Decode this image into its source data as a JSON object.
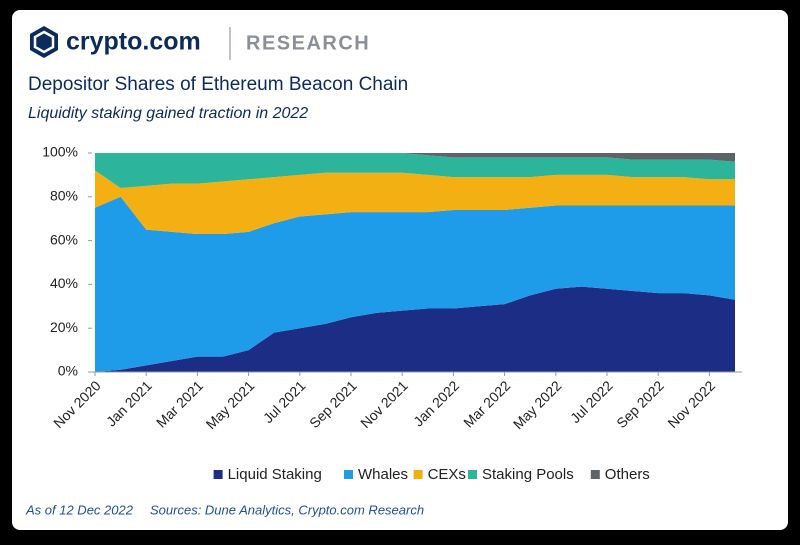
{
  "brand": "crypto.com",
  "section": "RESEARCH",
  "chart_data": {
    "type": "stacked-area",
    "title": "Depositor Shares of Ethereum Beacon Chain",
    "subtitle": "Liquidity staking gained traction in 2022",
    "categories": [
      "Nov 2020",
      null,
      "Jan 2021",
      null,
      "Mar 2021",
      null,
      "May 2021",
      null,
      "Jul 2021",
      null,
      "Sep 2021",
      null,
      "Nov 2021",
      null,
      "Jan 2022",
      null,
      "Mar 2022",
      null,
      "May 2022",
      null,
      "Jul 2022",
      null,
      "Sep 2022",
      null,
      "Nov 2022",
      null
    ],
    "series": [
      {
        "name": "Liquid Staking",
        "color": "#1b2d84",
        "values": [
          0,
          1,
          3,
          5,
          7,
          7,
          10,
          18,
          20,
          22,
          25,
          27,
          28,
          29,
          29,
          30,
          31,
          35,
          38,
          39,
          38,
          37,
          36,
          36,
          35,
          33
        ]
      },
      {
        "name": "Whales",
        "color": "#1e9be9",
        "values": [
          75,
          79,
          62,
          59,
          56,
          56,
          54,
          50,
          51,
          50,
          48,
          46,
          45,
          44,
          45,
          44,
          43,
          40,
          38,
          37,
          38,
          39,
          40,
          40,
          41,
          43
        ]
      },
      {
        "name": "CEXs",
        "color": "#f4b012",
        "values": [
          17,
          4,
          20,
          22,
          23,
          24,
          24,
          21,
          19,
          19,
          18,
          18,
          18,
          17,
          15,
          15,
          15,
          14,
          14,
          14,
          14,
          13,
          13,
          13,
          12,
          12
        ]
      },
      {
        "name": "Staking Pools",
        "color": "#2db59b",
        "values": [
          8,
          16,
          15,
          14,
          14,
          13,
          12,
          11,
          10,
          9,
          9,
          9,
          9,
          9,
          9,
          9,
          9,
          9,
          8,
          8,
          8,
          8,
          8,
          8,
          9,
          8
        ]
      },
      {
        "name": "Others",
        "color": "#5f6368",
        "values": [
          0,
          0,
          0,
          0,
          0,
          0,
          0,
          0,
          0,
          0,
          0,
          0,
          0,
          1,
          2,
          2,
          2,
          2,
          2,
          2,
          2,
          3,
          3,
          3,
          3,
          4
        ]
      }
    ],
    "ylim": [
      0,
      100
    ],
    "yticks": [
      {
        "value": 0,
        "label": "0%"
      },
      {
        "value": 20,
        "label": "20%"
      },
      {
        "value": 40,
        "label": "40%"
      },
      {
        "value": 60,
        "label": "60%"
      },
      {
        "value": 80,
        "label": "80%"
      },
      {
        "value": 100,
        "label": "100%"
      }
    ],
    "legend": "bottom"
  },
  "footer": {
    "date": "As of 12 Dec 2022",
    "sources": "Sources: Dune Analytics, Crypto.com Research"
  }
}
